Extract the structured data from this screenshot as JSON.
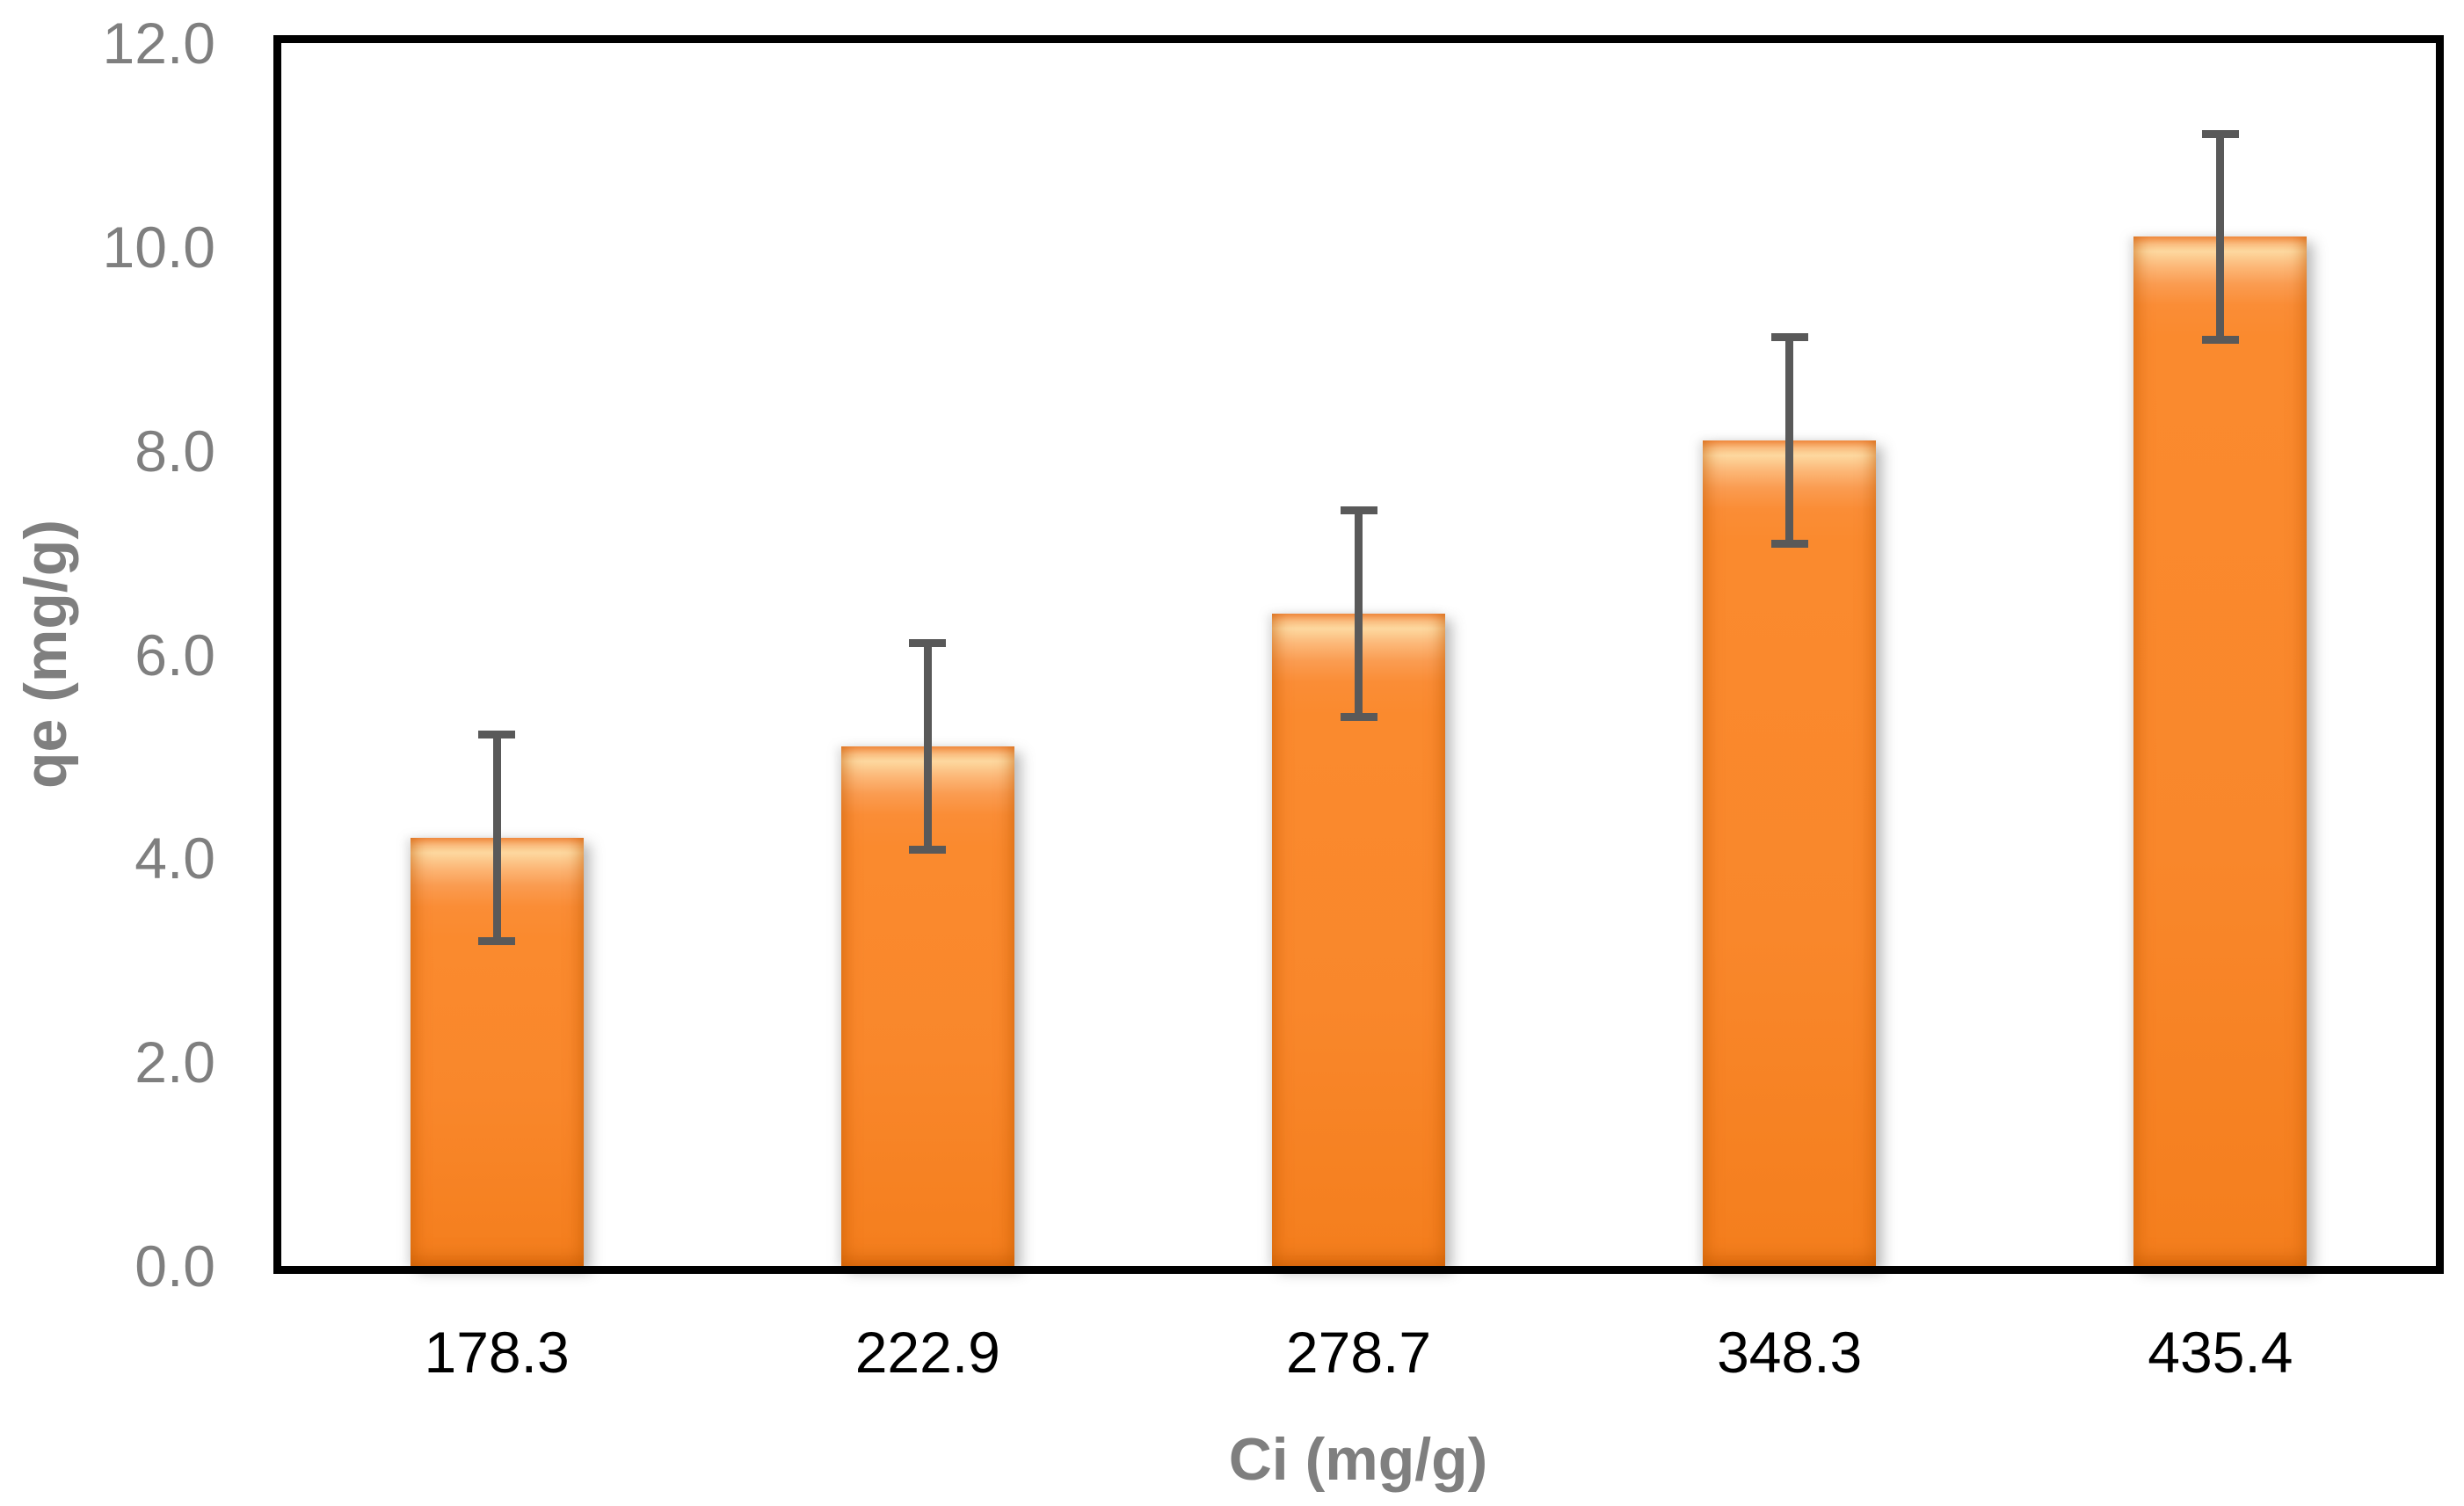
{
  "chart_data": {
    "type": "bar",
    "title": "",
    "xlabel": "Ci (mg/g)",
    "ylabel": "qe (mg/g)",
    "categories": [
      "178.3",
      "222.9",
      "278.7",
      "348.3",
      "435.4"
    ],
    "values": [
      4.2,
      5.1,
      6.4,
      8.1,
      10.1
    ],
    "error_bars": [
      1.05,
      1.05,
      1.05,
      1.05,
      1.05
    ],
    "ylim": [
      0,
      12
    ],
    "ytick_labels": [
      "0.0",
      "2.0",
      "4.0",
      "6.0",
      "8.0",
      "10.0",
      "12.0"
    ],
    "grid": false,
    "legend_position": "none",
    "colors": {
      "bar_fill": "#FA8A2E",
      "bar_edge_shade": "#F47E1D",
      "bar_highlight": "#FDD89F",
      "error_bar": "#595959",
      "plot_border": "#000000",
      "x_tick_text": "#000000",
      "y_tick_text": "#7F7F7F",
      "axis_title_text": "#7F7F7F",
      "background": "#FFFFFF"
    }
  }
}
